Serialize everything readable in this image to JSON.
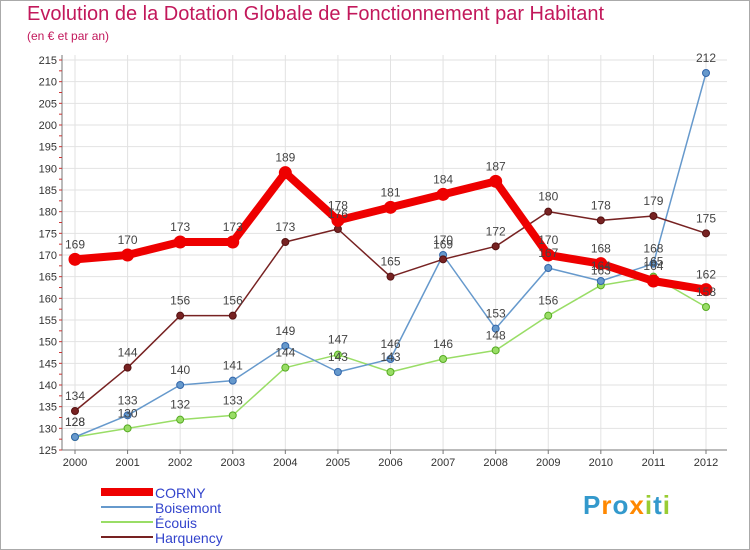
{
  "chart_data": {
    "type": "line",
    "title": "Evolution de la Dotation Globale de Fonctionnement par Habitant",
    "subtitle": "(en € et par an)",
    "x": [
      "2000",
      "2001",
      "2002",
      "2003",
      "2004",
      "2005",
      "2006",
      "2007",
      "2008",
      "2009",
      "2010",
      "2011",
      "2012"
    ],
    "ylim": [
      125,
      215
    ],
    "yticks": [
      125,
      130,
      135,
      140,
      145,
      150,
      155,
      160,
      165,
      170,
      175,
      180,
      185,
      190,
      195,
      200,
      205,
      210,
      215
    ],
    "series": [
      {
        "name": "CORNY",
        "color": "#ee0000",
        "values": [
          169,
          170,
          173,
          173,
          189,
          178,
          181,
          184,
          187,
          170,
          168,
          164,
          162
        ]
      },
      {
        "name": "Boisemont",
        "color": "#6699cc",
        "values": [
          128,
          133,
          140,
          141,
          149,
          143,
          146,
          170,
          153,
          167,
          164,
          168,
          212
        ]
      },
      {
        "name": "Écouis",
        "color": "#99dd66",
        "values": [
          128,
          130,
          132,
          133,
          144,
          147,
          143,
          146,
          148,
          156,
          163,
          165,
          158
        ]
      },
      {
        "name": "Harquency",
        "color": "#772222",
        "values": [
          134,
          144,
          156,
          156,
          173,
          176,
          165,
          169,
          172,
          180,
          178,
          179,
          175
        ]
      }
    ],
    "labels": [
      {
        "series": "CORNY",
        "values": [
          "169",
          "170",
          "173",
          "173",
          "189",
          "178",
          "181",
          "184",
          "187",
          "170",
          "168",
          "164",
          "162"
        ]
      },
      {
        "series": "Boisemont",
        "values": [
          "128",
          "133",
          "140",
          "141",
          "149",
          "143",
          "146",
          "170",
          "153",
          "167",
          "164",
          "168",
          "212"
        ]
      },
      {
        "series": "Écouis",
        "values": [
          "128",
          "130",
          "132",
          "133",
          "144",
          "147",
          "143",
          "146",
          "148",
          "156",
          "163",
          "165",
          "158"
        ]
      },
      {
        "series": "Harquency",
        "values": [
          "134",
          "144",
          "156",
          "156",
          "173",
          "176",
          "165",
          "169",
          "172",
          "180",
          "178",
          "179",
          "175"
        ]
      }
    ]
  },
  "legend": [
    "CORNY",
    "Boisemont",
    "Écouis",
    "Harquency"
  ],
  "logo": {
    "letters": [
      "P",
      "r",
      "o",
      "x",
      "i",
      "t",
      "i"
    ],
    "colors": [
      "#3399cc",
      "#ff8800",
      "#3399cc",
      "#ff8800",
      "#99cc33",
      "#3399cc",
      "#99cc33"
    ]
  }
}
